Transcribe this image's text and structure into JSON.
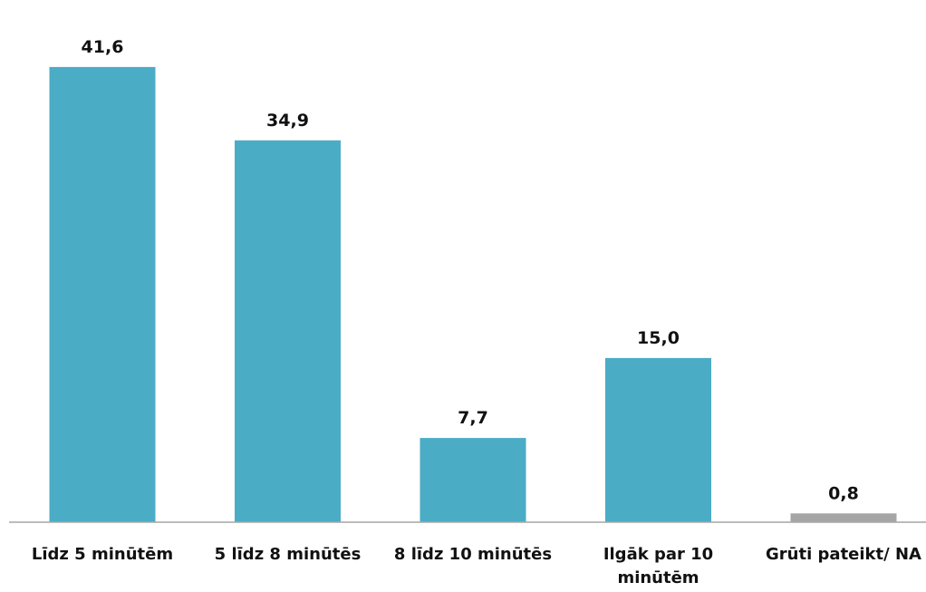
{
  "chart_data": {
    "type": "bar",
    "title": "",
    "xlabel": "",
    "ylabel": "",
    "ylim": [
      0,
      45
    ],
    "grid": false,
    "legend": "none",
    "categories": [
      [
        "Līdz 5 minūtēm"
      ],
      [
        "5 līdz 8 minūtēs"
      ],
      [
        "8 līdz 10 minūtēs"
      ],
      [
        "Ilgāk par 10",
        "minūtēm"
      ],
      [
        "Grūti pateikt/ NA"
      ]
    ],
    "values": [
      41.6,
      34.9,
      7.7,
      15.0,
      0.8
    ],
    "value_labels": [
      "41,6",
      "34,9",
      "7,7",
      "15,0",
      "0,8"
    ],
    "colors": [
      "#4BACC6",
      "#4BACC6",
      "#4BACC6",
      "#4BACC6",
      "#A5A5A5"
    ],
    "axis_color": "#A6A6A6"
  }
}
